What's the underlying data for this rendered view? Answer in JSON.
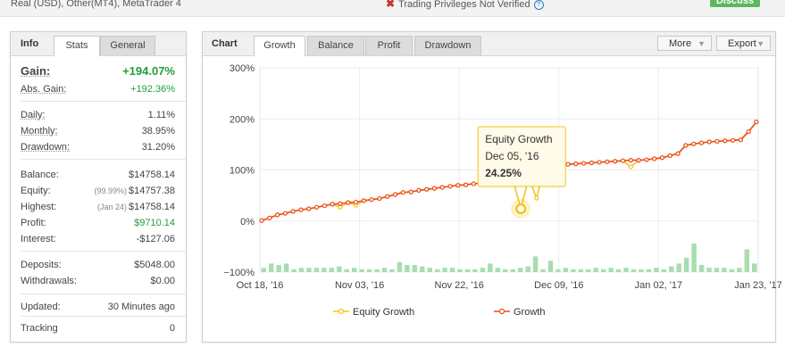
{
  "top": {
    "account": "Real (USD), Other(MT4), MetaTrader 4",
    "privileges": "Trading Privileges Not Verified",
    "discuss": "Discuss"
  },
  "info": {
    "tabs": [
      "Info",
      "Stats",
      "General"
    ],
    "gain": {
      "label": "Gain:",
      "value": "+194.07%"
    },
    "abs_gain": {
      "label": "Abs. Gain:",
      "value": "+192.36%"
    },
    "daily": {
      "label": "Daily:",
      "value": "1.11%"
    },
    "monthly": {
      "label": "Monthly:",
      "value": "38.95%"
    },
    "drawdown": {
      "label": "Drawdown:",
      "value": "31.20%"
    },
    "balance": {
      "label": "Balance:",
      "value": "$14758.14"
    },
    "equity": {
      "label": "Equity:",
      "note": "(99.99%)",
      "value": "$14757.38"
    },
    "highest": {
      "label": "Highest:",
      "note": "(Jan 24)",
      "value": "$14758.14"
    },
    "profit": {
      "label": "Profit:",
      "value": "$9710.14"
    },
    "interest": {
      "label": "Interest:",
      "value": "-$127.06"
    },
    "deposits": {
      "label": "Deposits:",
      "value": "$5048.00"
    },
    "withdrawals": {
      "label": "Withdrawals:",
      "value": "$0.00"
    },
    "updated": {
      "label": "Updated:",
      "value": "30 Minutes ago"
    },
    "tracking": {
      "label": "Tracking",
      "value": "0"
    }
  },
  "chart_panel": {
    "label": "Chart",
    "tabs": [
      "Growth",
      "Balance",
      "Profit",
      "Drawdown"
    ],
    "more": "More",
    "export": "Export"
  },
  "colors": {
    "growth": "#e84e1b",
    "equity": "#f5c21b",
    "bars": "#a8ddb0",
    "positive": "#1f9e3a"
  },
  "chart_data": {
    "type": "line",
    "y_ticks": [
      "300%",
      "200%",
      "100%",
      "0%",
      "−100%"
    ],
    "ylim": [
      -100,
      300
    ],
    "x_ticks": [
      "Oct 18, '16",
      "Nov 03, '16",
      "Nov 22, '16",
      "Dec 09, '16",
      "Jan 02, '17",
      "Jan 23, '17"
    ],
    "series": [
      {
        "name": "Equity Growth",
        "values": [
          1,
          6,
          12,
          15,
          19,
          22,
          24,
          27,
          30,
          33,
          27,
          36,
          31,
          40,
          42,
          44,
          48,
          52,
          56,
          57,
          60,
          62,
          64,
          66,
          68,
          70,
          71,
          73,
          74,
          75,
          76,
          77,
          80,
          24,
          85,
          45,
          105,
          108,
          110,
          111,
          112,
          113,
          114,
          115,
          116,
          117,
          118,
          106,
          119,
          120,
          122,
          124,
          128,
          132,
          148,
          151,
          153,
          155,
          156,
          157,
          158,
          159,
          175,
          194
        ]
      },
      {
        "name": "Growth",
        "values": [
          1,
          6,
          12,
          15,
          19,
          22,
          24,
          27,
          30,
          33,
          34,
          36,
          37,
          40,
          42,
          44,
          48,
          52,
          56,
          57,
          60,
          62,
          64,
          66,
          68,
          70,
          71,
          73,
          74,
          75,
          76,
          77,
          80,
          82,
          85,
          88,
          105,
          108,
          110,
          111,
          112,
          113,
          114,
          115,
          116,
          117,
          118,
          119,
          119,
          120,
          122,
          124,
          128,
          132,
          148,
          151,
          153,
          155,
          156,
          157,
          158,
          159,
          175,
          194
        ]
      }
    ],
    "volume": [
      3,
      6,
      5,
      6,
      2,
      3,
      3,
      3,
      3,
      3,
      4,
      2,
      3,
      2,
      2,
      2,
      3,
      2,
      7,
      5,
      5,
      4,
      3,
      2,
      3,
      3,
      2,
      2,
      2,
      3,
      6,
      3,
      2,
      2,
      3,
      4,
      11,
      2,
      8,
      2,
      3,
      2,
      2,
      2,
      3,
      2,
      3,
      2,
      3,
      2,
      2,
      2,
      3,
      2,
      4,
      6,
      10,
      20,
      5,
      3,
      3,
      3,
      2,
      3,
      16,
      6
    ]
  },
  "tooltip": {
    "title": "Equity Growth",
    "date": "Dec 05, '16",
    "value": "24.25%"
  },
  "legend": {
    "equity": "Equity Growth",
    "growth": "Growth"
  }
}
